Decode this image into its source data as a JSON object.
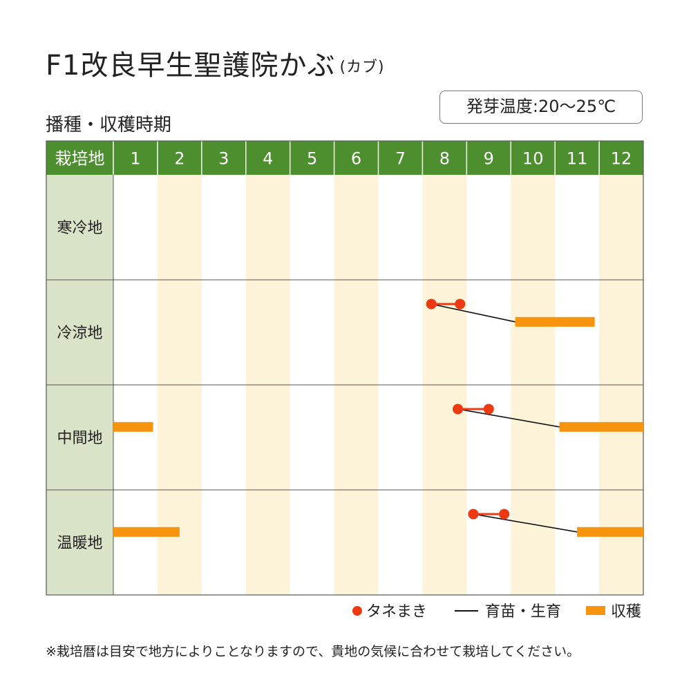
{
  "title": {
    "main": "F1改良早生聖護院かぶ",
    "sub": "(カブ)"
  },
  "germination_temp": "発芽温度:20〜25℃",
  "subtitle": "播種・収穫時期",
  "legend": {
    "sowing": "タネまき",
    "growing": "育苗・生育",
    "harvest": "収穫"
  },
  "note": "※栽培暦は目安で地方によりことなりますので、貴地の気候に合わせて栽培してください。",
  "colors": {
    "header_green": "#4d8e2f",
    "region_cell": "#d9e3c8",
    "month_shade": "#fdf3d8",
    "sowing": "#ee3a12",
    "harvest": "#f7940f",
    "growing_line": "#111111"
  },
  "chart_data": {
    "type": "gantt",
    "header_label": "栽培地",
    "months": [
      "1",
      "2",
      "3",
      "4",
      "5",
      "6",
      "7",
      "8",
      "9",
      "10",
      "11",
      "12"
    ],
    "shaded_months": [
      2,
      4,
      6,
      8,
      10,
      12
    ],
    "rows": [
      {
        "region": "寒冷地",
        "sowing": [],
        "harvest": []
      },
      {
        "region": "冷涼地",
        "sowing": [
          8.2,
          8.85
        ],
        "growing": [
          8.2,
          10.1
        ],
        "harvest": [
          [
            10.1,
            11.9
          ]
        ]
      },
      {
        "region": "中間地",
        "sowing": [
          8.8,
          9.5
        ],
        "growing": [
          8.8,
          11.1
        ],
        "harvest": [
          [
            1.0,
            1.9
          ],
          [
            11.1,
            13.0
          ]
        ]
      },
      {
        "region": "温暖地",
        "sowing": [
          9.15,
          9.85
        ],
        "growing": [
          9.15,
          11.5
        ],
        "harvest": [
          [
            1.0,
            2.5
          ],
          [
            11.5,
            13.0
          ]
        ]
      }
    ]
  }
}
